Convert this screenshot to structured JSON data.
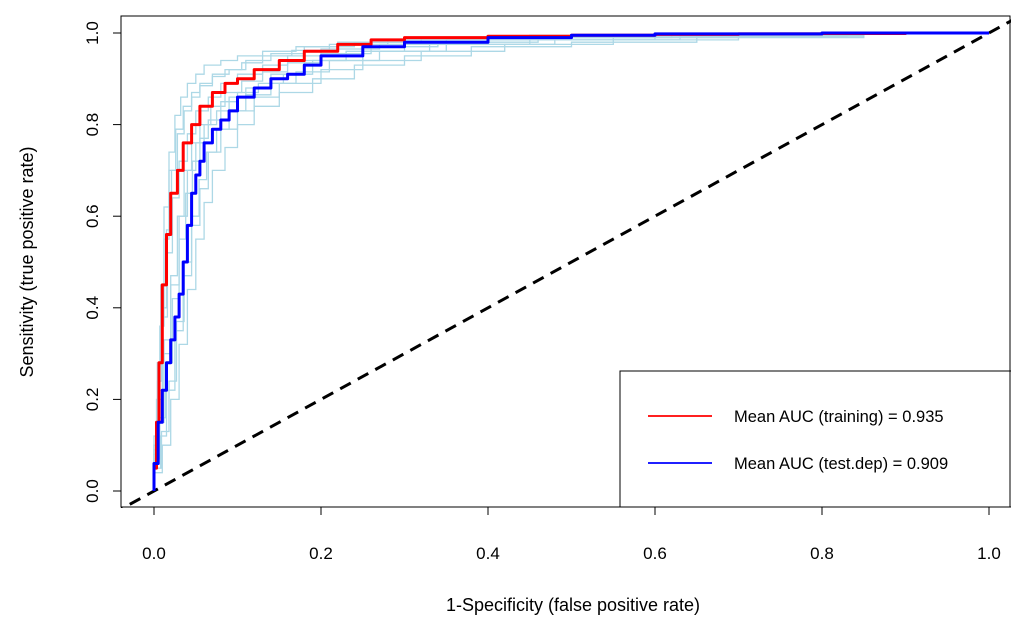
{
  "chart_data": {
    "type": "line",
    "title": "",
    "xlabel": "1-Specificity (false positive rate)",
    "ylabel": "Sensitivity (true positive rate)",
    "xlim": [
      0,
      1
    ],
    "ylim": [
      0,
      1
    ],
    "x_ticks": [
      "0.0",
      "0.2",
      "0.4",
      "0.6",
      "0.8",
      "1.0"
    ],
    "y_ticks": [
      "0.0",
      "0.2",
      "0.4",
      "0.6",
      "0.8",
      "1.0"
    ],
    "grid": false,
    "legend_position": "bottom-right",
    "reference_line": {
      "style": "dashed",
      "color": "#000000",
      "points": [
        [
          0,
          0
        ],
        [
          1,
          1
        ]
      ]
    },
    "series": [
      {
        "name": "Mean AUC (training) = 0.935",
        "color": "#ff0000",
        "x": [
          0,
          0.003,
          0.006,
          0.01,
          0.015,
          0.02,
          0.028,
          0.035,
          0.045,
          0.055,
          0.07,
          0.085,
          0.1,
          0.12,
          0.15,
          0.18,
          0.22,
          0.26,
          0.3,
          0.4,
          0.5,
          0.6,
          0.7,
          0.8,
          0.9,
          1.0
        ],
        "y": [
          0,
          0.05,
          0.15,
          0.28,
          0.45,
          0.56,
          0.65,
          0.7,
          0.76,
          0.8,
          0.84,
          0.87,
          0.89,
          0.9,
          0.92,
          0.94,
          0.96,
          0.975,
          0.985,
          0.99,
          0.993,
          0.995,
          0.997,
          0.998,
          0.999,
          1.0
        ]
      },
      {
        "name": "Mean AUC (test.dep) = 0.909",
        "color": "#0000ff",
        "x": [
          0,
          0.005,
          0.01,
          0.015,
          0.02,
          0.025,
          0.03,
          0.035,
          0.04,
          0.045,
          0.05,
          0.055,
          0.06,
          0.07,
          0.08,
          0.09,
          0.1,
          0.12,
          0.14,
          0.16,
          0.18,
          0.2,
          0.25,
          0.3,
          0.4,
          0.5,
          0.6,
          0.8,
          1.0
        ],
        "y": [
          0,
          0.06,
          0.15,
          0.22,
          0.28,
          0.33,
          0.38,
          0.43,
          0.5,
          0.58,
          0.65,
          0.69,
          0.72,
          0.76,
          0.79,
          0.81,
          0.83,
          0.86,
          0.88,
          0.9,
          0.91,
          0.93,
          0.95,
          0.97,
          0.98,
          0.99,
          0.995,
          0.998,
          1.0
        ]
      }
    ],
    "background_series": [
      {
        "color": "#add8e6",
        "x": [
          0,
          0.004,
          0.008,
          0.012,
          0.018,
          0.025,
          0.032,
          0.04,
          0.05,
          0.06,
          0.08,
          0.1,
          0.13,
          0.17,
          0.22,
          0.3,
          0.45,
          0.6,
          0.8,
          1.0
        ],
        "y": [
          0,
          0.12,
          0.28,
          0.45,
          0.62,
          0.74,
          0.82,
          0.86,
          0.89,
          0.91,
          0.93,
          0.94,
          0.95,
          0.96,
          0.97,
          0.98,
          0.99,
          0.995,
          0.998,
          1.0
        ]
      },
      {
        "color": "#add8e6",
        "x": [
          0,
          0.006,
          0.012,
          0.02,
          0.03,
          0.04,
          0.05,
          0.06,
          0.075,
          0.09,
          0.11,
          0.14,
          0.18,
          0.23,
          0.3,
          0.4,
          0.55,
          0.7,
          0.85,
          1.0
        ],
        "y": [
          0,
          0.06,
          0.15,
          0.3,
          0.45,
          0.6,
          0.7,
          0.76,
          0.8,
          0.83,
          0.86,
          0.88,
          0.91,
          0.94,
          0.96,
          0.975,
          0.985,
          0.99,
          0.995,
          1.0
        ]
      },
      {
        "color": "#add8e6",
        "x": [
          0,
          0.008,
          0.015,
          0.025,
          0.035,
          0.045,
          0.055,
          0.065,
          0.08,
          0.1,
          0.12,
          0.15,
          0.2,
          0.25,
          0.32,
          0.42,
          0.55,
          0.7,
          0.85,
          1.0
        ],
        "y": [
          0,
          0.05,
          0.12,
          0.22,
          0.35,
          0.47,
          0.58,
          0.66,
          0.74,
          0.79,
          0.83,
          0.86,
          0.89,
          0.92,
          0.94,
          0.96,
          0.975,
          0.985,
          0.993,
          1.0
        ]
      },
      {
        "color": "#add8e6",
        "x": [
          0,
          0.005,
          0.01,
          0.016,
          0.022,
          0.03,
          0.04,
          0.05,
          0.065,
          0.08,
          0.1,
          0.13,
          0.16,
          0.2,
          0.27,
          0.35,
          0.5,
          0.65,
          0.8,
          1.0
        ],
        "y": [
          0,
          0.1,
          0.22,
          0.38,
          0.52,
          0.64,
          0.72,
          0.78,
          0.83,
          0.86,
          0.89,
          0.91,
          0.93,
          0.95,
          0.965,
          0.975,
          0.985,
          0.99,
          0.995,
          1.0
        ]
      },
      {
        "color": "#add8e6",
        "x": [
          0,
          0.01,
          0.02,
          0.03,
          0.04,
          0.05,
          0.06,
          0.07,
          0.085,
          0.1,
          0.12,
          0.15,
          0.19,
          0.24,
          0.3,
          0.38,
          0.5,
          0.65,
          0.85,
          1.0
        ],
        "y": [
          0,
          0.04,
          0.1,
          0.2,
          0.32,
          0.44,
          0.55,
          0.63,
          0.7,
          0.75,
          0.8,
          0.84,
          0.87,
          0.9,
          0.93,
          0.95,
          0.97,
          0.98,
          0.99,
          1.0
        ]
      },
      {
        "color": "#add8e6",
        "x": [
          0,
          0.003,
          0.007,
          0.012,
          0.018,
          0.026,
          0.035,
          0.045,
          0.055,
          0.07,
          0.09,
          0.11,
          0.14,
          0.18,
          0.24,
          0.32,
          0.45,
          0.6,
          0.8,
          1.0
        ],
        "y": [
          0,
          0.08,
          0.2,
          0.36,
          0.55,
          0.7,
          0.79,
          0.84,
          0.87,
          0.89,
          0.91,
          0.92,
          0.94,
          0.955,
          0.97,
          0.98,
          0.988,
          0.993,
          0.997,
          1.0
        ]
      },
      {
        "color": "#add8e6",
        "x": [
          0,
          0.007,
          0.014,
          0.022,
          0.03,
          0.038,
          0.046,
          0.055,
          0.065,
          0.08,
          0.1,
          0.125,
          0.155,
          0.19,
          0.25,
          0.33,
          0.45,
          0.6,
          0.8,
          1.0
        ],
        "y": [
          0,
          0.07,
          0.16,
          0.28,
          0.42,
          0.55,
          0.65,
          0.72,
          0.77,
          0.81,
          0.85,
          0.87,
          0.89,
          0.91,
          0.94,
          0.96,
          0.975,
          0.985,
          0.993,
          1.0
        ]
      },
      {
        "color": "#add8e6",
        "x": [
          0,
          0.005,
          0.012,
          0.02,
          0.028,
          0.036,
          0.045,
          0.055,
          0.068,
          0.085,
          0.105,
          0.13,
          0.16,
          0.2,
          0.26,
          0.34,
          0.46,
          0.62,
          0.82,
          1.0
        ],
        "y": [
          0,
          0.09,
          0.2,
          0.33,
          0.47,
          0.6,
          0.7,
          0.76,
          0.8,
          0.84,
          0.87,
          0.895,
          0.915,
          0.935,
          0.955,
          0.97,
          0.98,
          0.99,
          0.995,
          1.0
        ]
      },
      {
        "color": "#add8e6",
        "x": [
          0,
          0.009,
          0.018,
          0.027,
          0.036,
          0.045,
          0.054,
          0.063,
          0.075,
          0.09,
          0.11,
          0.14,
          0.17,
          0.21,
          0.27,
          0.35,
          0.48,
          0.63,
          0.83,
          1.0
        ],
        "y": [
          0,
          0.05,
          0.13,
          0.24,
          0.37,
          0.5,
          0.6,
          0.68,
          0.74,
          0.79,
          0.83,
          0.865,
          0.89,
          0.915,
          0.94,
          0.96,
          0.975,
          0.985,
          0.993,
          1.0
        ]
      },
      {
        "color": "#add8e6",
        "x": [
          0,
          0.004,
          0.009,
          0.015,
          0.021,
          0.028,
          0.036,
          0.045,
          0.055,
          0.07,
          0.085,
          0.105,
          0.13,
          0.165,
          0.21,
          0.28,
          0.4,
          0.55,
          0.75,
          1.0
        ],
        "y": [
          0,
          0.1,
          0.24,
          0.4,
          0.57,
          0.7,
          0.78,
          0.83,
          0.86,
          0.885,
          0.905,
          0.92,
          0.935,
          0.95,
          0.962,
          0.975,
          0.985,
          0.992,
          0.997,
          1.0
        ]
      }
    ]
  }
}
